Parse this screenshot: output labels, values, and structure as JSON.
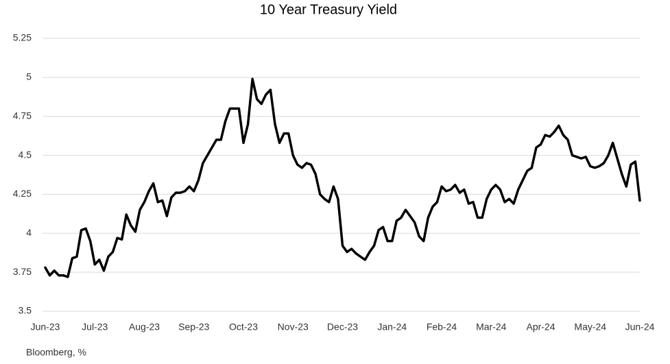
{
  "chart_data": {
    "type": "line",
    "title": "10 Year Treasury Yield",
    "source": "Bloomberg, %",
    "categories": [
      "Jun-23",
      null,
      null,
      null,
      null,
      null,
      null,
      null,
      null,
      null,
      null,
      "Jul-23",
      null,
      null,
      null,
      null,
      null,
      null,
      null,
      null,
      null,
      null,
      "Aug-23",
      null,
      null,
      null,
      null,
      null,
      null,
      null,
      null,
      null,
      null,
      "Sep-23",
      null,
      null,
      null,
      null,
      null,
      null,
      null,
      null,
      null,
      null,
      "Oct-23",
      null,
      null,
      null,
      null,
      null,
      null,
      null,
      null,
      null,
      null,
      "Nov-23",
      null,
      null,
      null,
      null,
      null,
      null,
      null,
      null,
      null,
      null,
      "Dec-23",
      null,
      null,
      null,
      null,
      null,
      null,
      null,
      null,
      null,
      null,
      "Jan-24",
      null,
      null,
      null,
      null,
      null,
      null,
      null,
      null,
      null,
      null,
      "Feb-24",
      null,
      null,
      null,
      null,
      null,
      null,
      null,
      null,
      null,
      null,
      "Mar-24",
      null,
      null,
      null,
      null,
      null,
      null,
      null,
      null,
      null,
      null,
      "Apr-24",
      null,
      null,
      null,
      null,
      null,
      null,
      null,
      null,
      null,
      null,
      "May-24",
      null,
      null,
      null,
      null,
      null,
      null,
      null,
      null,
      null,
      null,
      "Jun-24"
    ],
    "series": [
      {
        "name": "10 Year Treasury Yield",
        "color": "#000000",
        "values": [
          3.78,
          3.73,
          3.76,
          3.73,
          3.73,
          3.72,
          3.84,
          3.85,
          4.02,
          4.03,
          3.95,
          3.8,
          3.83,
          3.76,
          3.85,
          3.88,
          3.97,
          3.96,
          4.12,
          4.05,
          4.01,
          4.15,
          4.2,
          4.27,
          4.32,
          4.2,
          4.21,
          4.11,
          4.23,
          4.26,
          4.26,
          4.27,
          4.3,
          4.27,
          4.34,
          4.45,
          4.5,
          4.55,
          4.6,
          4.6,
          4.72,
          4.8,
          4.8,
          4.8,
          4.58,
          4.7,
          4.99,
          4.86,
          4.83,
          4.89,
          4.92,
          4.7,
          4.58,
          4.64,
          4.64,
          4.5,
          4.44,
          4.42,
          4.45,
          4.44,
          4.38,
          4.25,
          4.22,
          4.2,
          4.3,
          4.22,
          3.92,
          3.88,
          3.9,
          3.87,
          3.85,
          3.83,
          3.88,
          3.92,
          4.02,
          4.04,
          3.95,
          3.95,
          4.08,
          4.1,
          4.15,
          4.11,
          4.07,
          3.98,
          3.95,
          4.1,
          4.17,
          4.2,
          4.3,
          4.27,
          4.28,
          4.31,
          4.26,
          4.28,
          4.19,
          4.2,
          4.1,
          4.1,
          4.22,
          4.28,
          4.31,
          4.28,
          4.2,
          4.22,
          4.19,
          4.28,
          4.34,
          4.4,
          4.42,
          4.55,
          4.57,
          4.63,
          4.62,
          4.65,
          4.69,
          4.63,
          4.6,
          4.5,
          4.49,
          4.48,
          4.49,
          4.43,
          4.42,
          4.43,
          4.45,
          4.5,
          4.58,
          4.48,
          4.38,
          4.3,
          4.44,
          4.46,
          4.21
        ]
      }
    ],
    "ylim": [
      3.5,
      5.25
    ],
    "yticks": [
      3.5,
      3.75,
      4,
      4.25,
      4.5,
      4.75,
      5,
      5.25
    ],
    "grid": true
  }
}
